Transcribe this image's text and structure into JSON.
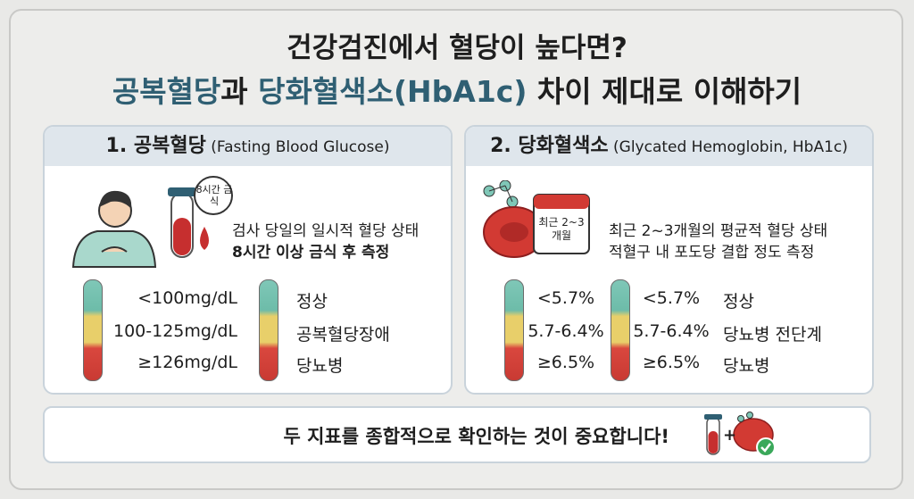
{
  "title": {
    "line1": "건강검진에서 혈당이 높다면?",
    "line2": [
      {
        "text": "공복혈당",
        "accent": true
      },
      {
        "text": "과 ",
        "accent": false
      },
      {
        "text": "당화혈색소(HbA1c)",
        "accent": true
      },
      {
        "text": " 차이 제대로 이해하기",
        "accent": false
      }
    ]
  },
  "panels": [
    {
      "heading": "1. 공복혈당",
      "subheading": " (Fasting Blood Glucose)",
      "icon_label": "8시간 금식",
      "description": [
        "검사 당일의 일시적 혈당 상태",
        "8시간 이상 금식 후 측정"
      ],
      "ranges": [
        "<100mg/dL",
        "100-125mg/dL",
        "≥126mg/dL"
      ],
      "labels": [
        "정상",
        "공복혈당장애",
        "당뇨병"
      ]
    },
    {
      "heading": "2. 당화혈색소",
      "subheading": " (Glycated Hemoglobin, HbA1c)",
      "icon_label": "최근 2~3개월",
      "description": [
        "최근 2~3개월의 평균적 혈당 상태",
        "적혈구 내 포도당 결합 정도 측정"
      ],
      "ranges": [
        "<5.7%",
        "5.7-6.4%",
        "≥6.5%"
      ],
      "labels": [
        "정상",
        "당뇨병 전단계",
        "당뇨병"
      ]
    }
  ],
  "footer": {
    "text": "두 지표를 종합적으로 확인하는 것이 중요합니다!",
    "plus": "+"
  }
}
